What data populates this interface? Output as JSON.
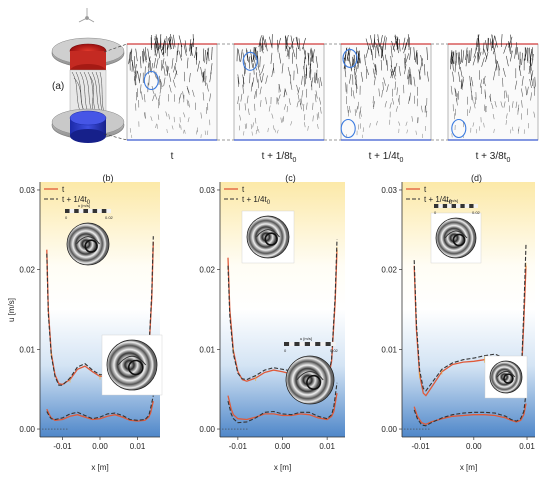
{
  "panel_a": {
    "label": "(a)",
    "snapshots": [
      "t",
      "t + 1/8t",
      "t + 1/4t",
      "t + 3/8t"
    ],
    "subscript": "0"
  },
  "chart_data": [
    {
      "panel": "(b)",
      "type": "line",
      "xlabel": "x [m]",
      "ylabel": "u [m/s]",
      "ylim": [
        -0.001,
        0.031
      ],
      "xlim": [
        -0.016,
        0.016
      ],
      "xticks": [
        "-0.01",
        "0.00",
        "0.01"
      ],
      "xtick_values": [
        -0.01,
        0.0,
        0.01
      ],
      "yticks": [
        "0.00",
        "0.01",
        "0.02",
        "0.03"
      ],
      "ytick_values": [
        0.0,
        0.01,
        0.02,
        0.03
      ],
      "legend": [
        "t",
        "t + 1/4t"
      ],
      "legend_sub": "0",
      "colorbar_label": "u [m/s]",
      "colorbar_ticks": [
        "0",
        "0.02"
      ],
      "series": [
        {
          "name": "t",
          "style": "solid",
          "color": "#e05a3a",
          "x": [
            -0.0142,
            -0.0138,
            -0.013,
            -0.012,
            -0.011,
            -0.01,
            -0.008,
            -0.006,
            -0.004,
            -0.002,
            0.0,
            0.002,
            0.004,
            0.006,
            0.008,
            0.01,
            0.011,
            0.012,
            0.013,
            0.0138,
            0.0142
          ],
          "y": [
            0.0225,
            0.015,
            0.0095,
            0.0068,
            0.0057,
            0.0056,
            0.0062,
            0.0075,
            0.0079,
            0.0072,
            0.0066,
            0.0067,
            0.0072,
            0.0076,
            0.0071,
            0.0059,
            0.0054,
            0.0061,
            0.0095,
            0.0165,
            0.0235
          ]
        },
        {
          "name": "t + 1/4t0",
          "style": "dashed",
          "color": "#333333",
          "x": [
            -0.0142,
            -0.0138,
            -0.013,
            -0.012,
            -0.011,
            -0.01,
            -0.008,
            -0.006,
            -0.004,
            -0.002,
            0.0,
            0.002,
            0.004,
            0.006,
            0.008,
            0.01,
            0.011,
            0.012,
            0.013,
            0.0138,
            0.0142
          ],
          "y": [
            0.022,
            0.0145,
            0.0092,
            0.0066,
            0.0055,
            0.0055,
            0.0064,
            0.0078,
            0.0082,
            0.0074,
            0.0068,
            0.0069,
            0.0074,
            0.0082,
            0.0078,
            0.0062,
            0.0055,
            0.006,
            0.0098,
            0.0172,
            0.0242
          ]
        },
        {
          "name": "t (lower)",
          "style": "solid",
          "color": "#e05a3a",
          "x": [
            -0.0142,
            -0.0135,
            -0.013,
            -0.012,
            -0.01,
            -0.008,
            -0.006,
            -0.004,
            -0.002,
            0.0,
            0.002,
            0.004,
            0.006,
            0.008,
            0.01,
            0.012,
            0.013,
            0.0135,
            0.0142
          ],
          "y": [
            0.0025,
            0.0018,
            0.0014,
            0.0011,
            0.0012,
            0.0016,
            0.0018,
            0.0015,
            0.0012,
            0.0013,
            0.0016,
            0.0018,
            0.0015,
            0.0011,
            0.001,
            0.0011,
            0.0015,
            0.002,
            0.0035
          ]
        },
        {
          "name": "t + 1/4t0 (lower)",
          "style": "dashed",
          "color": "#333333",
          "x": [
            -0.0142,
            -0.0135,
            -0.013,
            -0.012,
            -0.01,
            -0.008,
            -0.006,
            -0.004,
            -0.002,
            0.0,
            0.002,
            0.004,
            0.006,
            0.008,
            0.01,
            0.012,
            0.013,
            0.0135,
            0.0142
          ],
          "y": [
            0.0022,
            0.0016,
            0.0013,
            0.0012,
            0.0014,
            0.0019,
            0.0021,
            0.0017,
            0.0013,
            0.0015,
            0.0019,
            0.002,
            0.0017,
            0.0012,
            0.0011,
            0.0012,
            0.0017,
            0.0026,
            0.0042
          ]
        }
      ]
    },
    {
      "panel": "(c)",
      "type": "line",
      "xlabel": "x [m]",
      "ylabel": "",
      "ylim": [
        -0.001,
        0.031
      ],
      "xlim": [
        -0.014,
        0.014
      ],
      "xticks": [
        "-0.01",
        "0.00",
        "0.01"
      ],
      "xtick_values": [
        -0.01,
        0.0,
        0.01
      ],
      "yticks": [
        "0.00",
        "0.01",
        "0.02",
        "0.03"
      ],
      "ytick_values": [
        0.0,
        0.01,
        0.02,
        0.03
      ],
      "legend": [
        "t",
        "t + 1/4t"
      ],
      "legend_sub": "0",
      "colorbar_label": "u [m/s]",
      "colorbar_ticks": [
        "0",
        "0.02"
      ],
      "series": [
        {
          "name": "t",
          "style": "solid",
          "color": "#e05a3a",
          "x": [
            -0.0122,
            -0.0118,
            -0.011,
            -0.01,
            -0.009,
            -0.008,
            -0.006,
            -0.004,
            -0.002,
            0.0,
            0.002,
            0.004,
            0.006,
            0.008,
            0.009,
            0.01,
            0.011,
            0.0118,
            0.0122
          ],
          "y": [
            0.0215,
            0.015,
            0.0098,
            0.0072,
            0.0062,
            0.006,
            0.0064,
            0.0071,
            0.0074,
            0.0072,
            0.0069,
            0.0067,
            0.0069,
            0.0068,
            0.0062,
            0.0056,
            0.0085,
            0.016,
            0.0225
          ]
        },
        {
          "name": "t + 1/4t0",
          "style": "dashed",
          "color": "#333333",
          "x": [
            -0.0122,
            -0.0118,
            -0.011,
            -0.01,
            -0.009,
            -0.008,
            -0.006,
            -0.004,
            -0.002,
            0.0,
            0.002,
            0.004,
            0.006,
            0.008,
            0.009,
            0.01,
            0.011,
            0.0118,
            0.0122
          ],
          "y": [
            0.0205,
            0.0142,
            0.0094,
            0.007,
            0.0063,
            0.0062,
            0.0067,
            0.0074,
            0.0077,
            0.0075,
            0.0073,
            0.0072,
            0.0074,
            0.0072,
            0.0064,
            0.0057,
            0.0088,
            0.0168,
            0.0238
          ]
        },
        {
          "name": "t (lower)",
          "style": "solid",
          "color": "#e05a3a",
          "x": [
            -0.0122,
            -0.0115,
            -0.011,
            -0.01,
            -0.008,
            -0.006,
            -0.004,
            -0.002,
            0.0,
            0.002,
            0.004,
            0.006,
            0.008,
            0.01,
            0.011,
            0.0115,
            0.0122
          ],
          "y": [
            0.0042,
            0.0025,
            0.0018,
            0.0013,
            0.0012,
            0.0015,
            0.0019,
            0.0019,
            0.0017,
            0.0017,
            0.0019,
            0.0018,
            0.0014,
            0.0012,
            0.0016,
            0.0022,
            0.0045
          ]
        },
        {
          "name": "t + 1/4t0 (lower)",
          "style": "dashed",
          "color": "#333333",
          "x": [
            -0.0122,
            -0.0115,
            -0.011,
            -0.01,
            -0.008,
            -0.006,
            -0.004,
            -0.002,
            0.0,
            0.002,
            0.004,
            0.006,
            0.008,
            0.01,
            0.011,
            0.0115,
            0.0122
          ],
          "y": [
            0.0035,
            0.0019,
            0.0013,
            0.0008,
            0.0009,
            0.0014,
            0.0021,
            0.0022,
            0.0019,
            0.0018,
            0.0021,
            0.0021,
            0.0016,
            0.0013,
            0.0018,
            0.0028,
            0.0058
          ]
        }
      ]
    },
    {
      "panel": "(d)",
      "type": "line",
      "xlabel": "x [m]",
      "ylabel": "",
      "ylim": [
        -0.001,
        0.031
      ],
      "xlim": [
        -0.0135,
        0.0115
      ],
      "xticks": [
        "-0.01",
        "0.00",
        "0.01"
      ],
      "xtick_values": [
        -0.01,
        0.0,
        0.01
      ],
      "yticks": [
        "0.00",
        "0.01",
        "0.02",
        "0.03"
      ],
      "ytick_values": [
        0.0,
        0.01,
        0.02,
        0.03
      ],
      "legend": [
        "t",
        "t + 1/4t"
      ],
      "legend_sub": "0",
      "colorbar_label": "u [m/s]",
      "colorbar_ticks": [
        "0",
        "0.02"
      ],
      "series": [
        {
          "name": "t",
          "style": "solid",
          "color": "#e05a3a",
          "x": [
            -0.0112,
            -0.0108,
            -0.0102,
            -0.0095,
            -0.009,
            -0.008,
            -0.006,
            -0.004,
            -0.002,
            0.0,
            0.002,
            0.004,
            0.006,
            0.007,
            0.008,
            0.0085,
            0.009,
            0.0094,
            0.0098
          ],
          "y": [
            0.0205,
            0.0125,
            0.0068,
            0.0045,
            0.0042,
            0.0052,
            0.0072,
            0.0081,
            0.0084,
            0.0085,
            0.0087,
            0.0088,
            0.0083,
            0.0072,
            0.0058,
            0.0055,
            0.0075,
            0.0135,
            0.0205
          ]
        },
        {
          "name": "t + 1/4t0",
          "style": "dashed",
          "color": "#333333",
          "x": [
            -0.0112,
            -0.0108,
            -0.0102,
            -0.0095,
            -0.009,
            -0.008,
            -0.006,
            -0.004,
            -0.002,
            0.0,
            0.002,
            0.004,
            0.006,
            0.007,
            0.008,
            0.0085,
            0.009,
            0.0094,
            0.0098
          ],
          "y": [
            0.0212,
            0.0132,
            0.0074,
            0.0051,
            0.0048,
            0.0057,
            0.0075,
            0.0083,
            0.0087,
            0.0089,
            0.0092,
            0.0094,
            0.0088,
            0.0075,
            0.006,
            0.0057,
            0.0082,
            0.0148,
            0.0232
          ]
        },
        {
          "name": "t (lower)",
          "style": "solid",
          "color": "#e05a3a",
          "x": [
            -0.0112,
            -0.0106,
            -0.0098,
            -0.009,
            -0.008,
            -0.006,
            -0.004,
            -0.002,
            0.0,
            0.002,
            0.004,
            0.006,
            0.007,
            0.008,
            0.0088,
            0.0094,
            0.0098
          ],
          "y": [
            0.0028,
            0.0016,
            0.0008,
            0.0006,
            0.0009,
            0.0013,
            0.0016,
            0.0017,
            0.0018,
            0.0018,
            0.0017,
            0.0014,
            0.0011,
            0.0009,
            0.0011,
            0.0018,
            0.0032
          ]
        },
        {
          "name": "t + 1/4t0 (lower)",
          "style": "dashed",
          "color": "#333333",
          "x": [
            -0.0112,
            -0.0106,
            -0.0098,
            -0.009,
            -0.008,
            -0.006,
            -0.004,
            -0.002,
            0.0,
            0.002,
            0.004,
            0.006,
            0.007,
            0.008,
            0.0088,
            0.0094,
            0.0098
          ],
          "y": [
            0.0024,
            0.0013,
            0.0005,
            0.0004,
            0.0008,
            0.0014,
            0.0018,
            0.002,
            0.0021,
            0.0021,
            0.002,
            0.0016,
            0.0012,
            0.001,
            0.0013,
            0.0022,
            0.0045
          ]
        }
      ]
    }
  ]
}
